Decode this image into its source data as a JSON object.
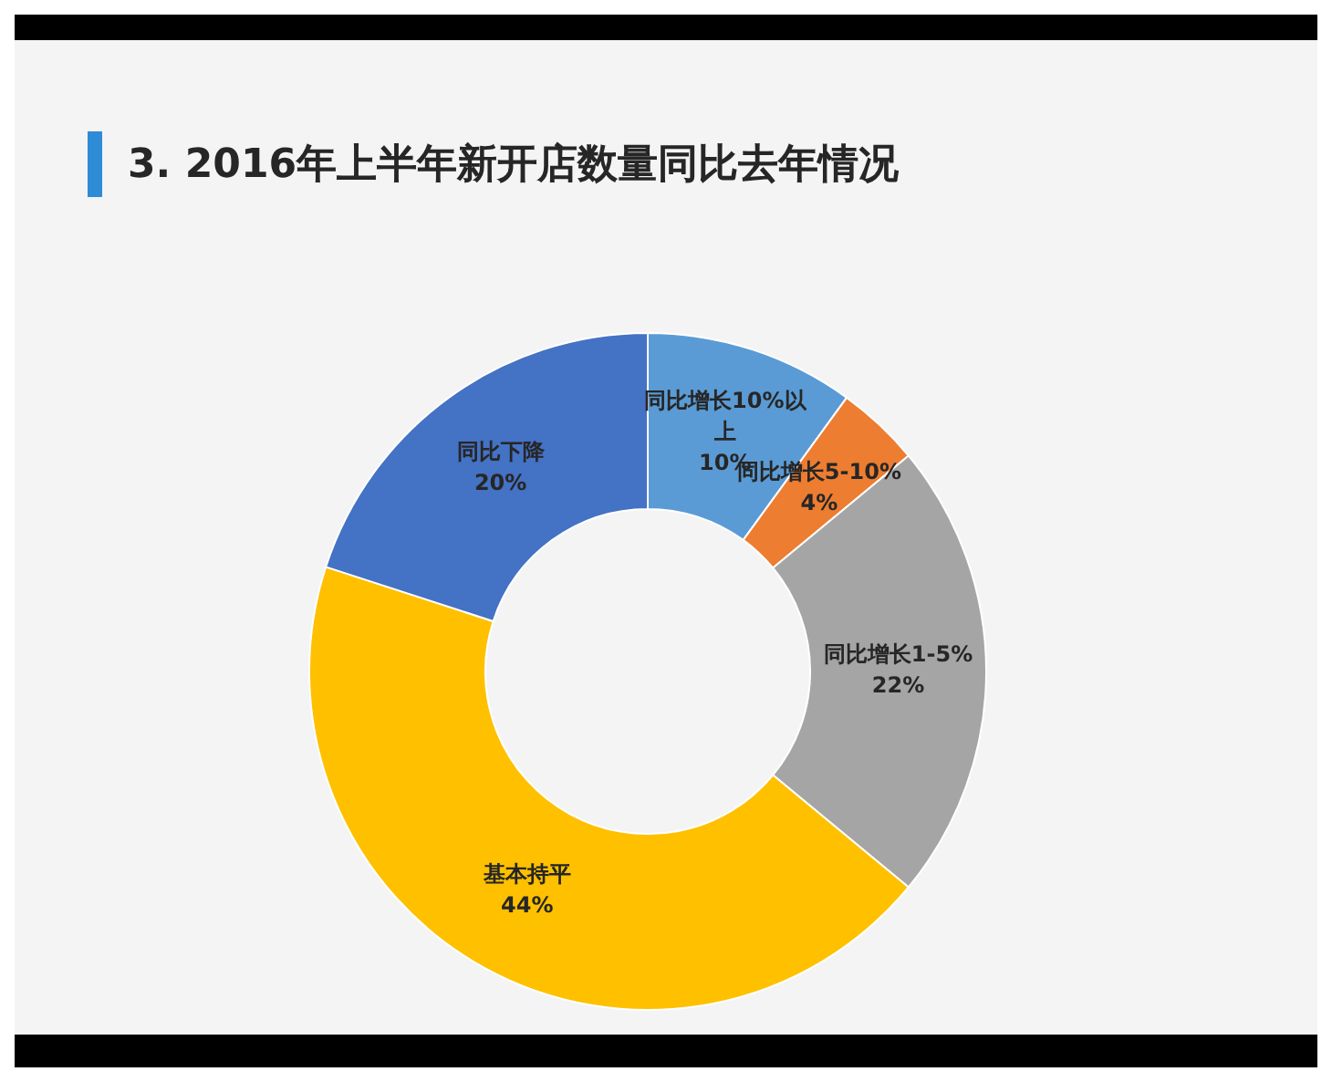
{
  "chart_data": {
    "type": "donut",
    "title": "3. 2016年上半年新开店数量同比去年情况",
    "categories": [
      "同比增长10%以上",
      "同比增长5-10%",
      "同比增长1-5%",
      "基本持平",
      "同比下降"
    ],
    "values": [
      10,
      4,
      22,
      44,
      20
    ],
    "colors": [
      "#5b9bd5",
      "#ed7d31",
      "#a5a5a5",
      "#ffc000",
      "#4472c4"
    ],
    "value_labels": [
      "10%",
      "4%",
      "22%",
      "44%",
      "20%"
    ],
    "legend": false
  }
}
